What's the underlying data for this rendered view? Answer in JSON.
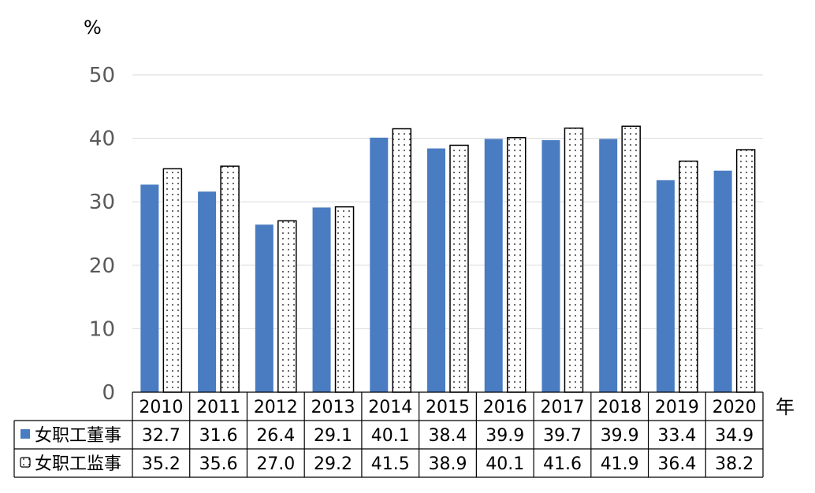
{
  "chart_data": {
    "type": "bar",
    "y_unit": "%",
    "x_unit": "年",
    "ylim": [
      0,
      50
    ],
    "yticks": [
      0,
      10,
      20,
      30,
      40,
      50
    ],
    "grid": true,
    "categories": [
      "2010",
      "2011",
      "2012",
      "2013",
      "2014",
      "2015",
      "2016",
      "2017",
      "2018",
      "2019",
      "2020"
    ],
    "series": [
      {
        "name": "女职工董事",
        "color": "#4a7cc2",
        "pattern": "solid",
        "values": [
          32.7,
          31.6,
          26.4,
          29.1,
          40.1,
          38.4,
          39.9,
          39.7,
          39.9,
          33.4,
          34.9
        ],
        "labels": [
          "32.7",
          "31.6",
          "26.4",
          "29.1",
          "40.1",
          "38.4",
          "39.9",
          "39.7",
          "39.9",
          "33.4",
          "34.9"
        ]
      },
      {
        "name": "女职工监事",
        "color": "#000000",
        "pattern": "dotted",
        "values": [
          35.2,
          35.6,
          27.0,
          29.2,
          41.5,
          38.9,
          40.1,
          41.6,
          41.9,
          36.4,
          38.2
        ],
        "labels": [
          "35.2",
          "35.6",
          "27.0",
          "29.2",
          "41.5",
          "38.9",
          "40.1",
          "41.6",
          "41.9",
          "36.4",
          "38.2"
        ]
      }
    ],
    "data_table": true
  }
}
